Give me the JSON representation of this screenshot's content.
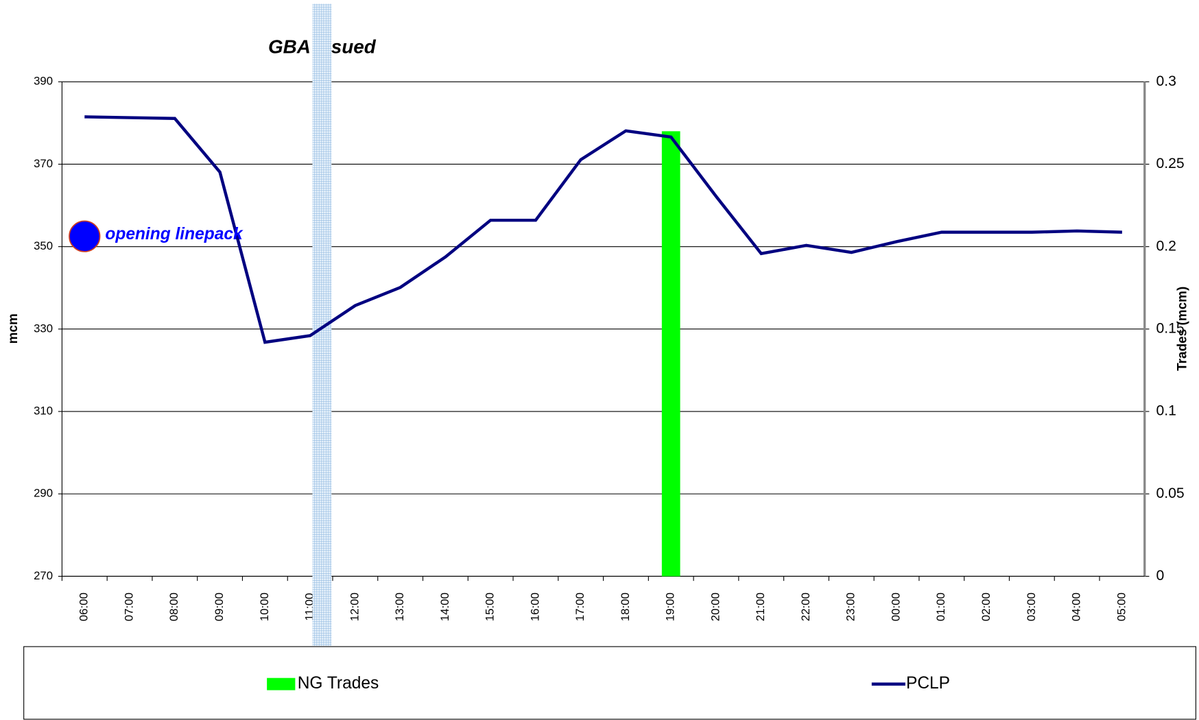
{
  "chart_data": {
    "type": "bar-line",
    "title": "GBA issued",
    "ylabel": "mcm",
    "y2label": "Trades (mcm)",
    "categories": [
      "06:00",
      "07:00",
      "08:00",
      "09:00",
      "10:00",
      "11:00",
      "12:00",
      "13:00",
      "14:00",
      "15:00",
      "16:00",
      "17:00",
      "18:00",
      "19:00",
      "20:00",
      "21:00",
      "22:00",
      "23:00",
      "00:00",
      "01:00",
      "02:00",
      "03:00",
      "04:00",
      "05:00"
    ],
    "series": [
      {
        "name": "NG Trades",
        "type": "bar",
        "axis": "y2",
        "color": "#00ff00",
        "values": [
          null,
          null,
          null,
          null,
          null,
          null,
          null,
          null,
          null,
          null,
          null,
          null,
          null,
          0.27,
          null,
          null,
          null,
          null,
          null,
          null,
          null,
          null,
          null,
          null
        ]
      },
      {
        "name": "PCLP",
        "type": "line",
        "color": "#000080",
        "values": [
          381.5,
          381.3,
          381.1,
          368.1,
          326.8,
          328.4,
          335.7,
          340.1,
          347.5,
          356.4,
          356.4,
          371.1,
          378.1,
          376.6,
          362.2,
          348.3,
          350.3,
          348.6,
          351.2,
          353.5,
          353.5,
          353.5,
          353.8,
          353.5
        ]
      }
    ],
    "annotation": {
      "text": "opening linepack",
      "x": "06:00",
      "y": 352.5,
      "color": "#0000ff"
    },
    "ylim": [
      270,
      390
    ],
    "yticks": [
      270,
      290,
      310,
      330,
      350,
      370,
      390
    ],
    "y2lim": [
      0,
      0.3
    ],
    "y2ticks": [
      0,
      0.05,
      0.1,
      0.15,
      0.2,
      0.25,
      0.3
    ],
    "grid": true,
    "legend": "bottom"
  }
}
